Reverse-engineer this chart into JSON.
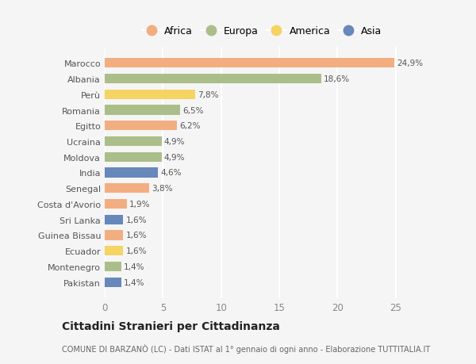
{
  "countries": [
    "Marocco",
    "Albania",
    "Perù",
    "Romania",
    "Egitto",
    "Ucraina",
    "Moldova",
    "India",
    "Senegal",
    "Costa d'Avorio",
    "Sri Lanka",
    "Guinea Bissau",
    "Ecuador",
    "Montenegro",
    "Pakistan"
  ],
  "values": [
    24.9,
    18.6,
    7.8,
    6.5,
    6.2,
    4.9,
    4.9,
    4.6,
    3.8,
    1.9,
    1.6,
    1.6,
    1.6,
    1.4,
    1.4
  ],
  "labels": [
    "24,9%",
    "18,6%",
    "7,8%",
    "6,5%",
    "6,2%",
    "4,9%",
    "4,9%",
    "4,6%",
    "3,8%",
    "1,9%",
    "1,6%",
    "1,6%",
    "1,6%",
    "1,4%",
    "1,4%"
  ],
  "continents": [
    "Africa",
    "Europa",
    "America",
    "Europa",
    "Africa",
    "Europa",
    "Europa",
    "Asia",
    "Africa",
    "Africa",
    "Asia",
    "Africa",
    "America",
    "Europa",
    "Asia"
  ],
  "continent_colors": {
    "Africa": "#F2AE80",
    "Europa": "#ABBE8A",
    "America": "#F5D464",
    "Asia": "#6688BB"
  },
  "legend_order": [
    "Africa",
    "Europa",
    "America",
    "Asia"
  ],
  "title": "Cittadini Stranieri per Cittadinanza",
  "subtitle": "COMUNE DI BARZANÒ (LC) - Dati ISTAT al 1° gennaio di ogni anno - Elaborazione TUTTITALIA.IT",
  "bg_color": "#f5f5f5",
  "xlim": [
    0,
    27
  ],
  "xticks": [
    0,
    5,
    10,
    15,
    20,
    25
  ]
}
